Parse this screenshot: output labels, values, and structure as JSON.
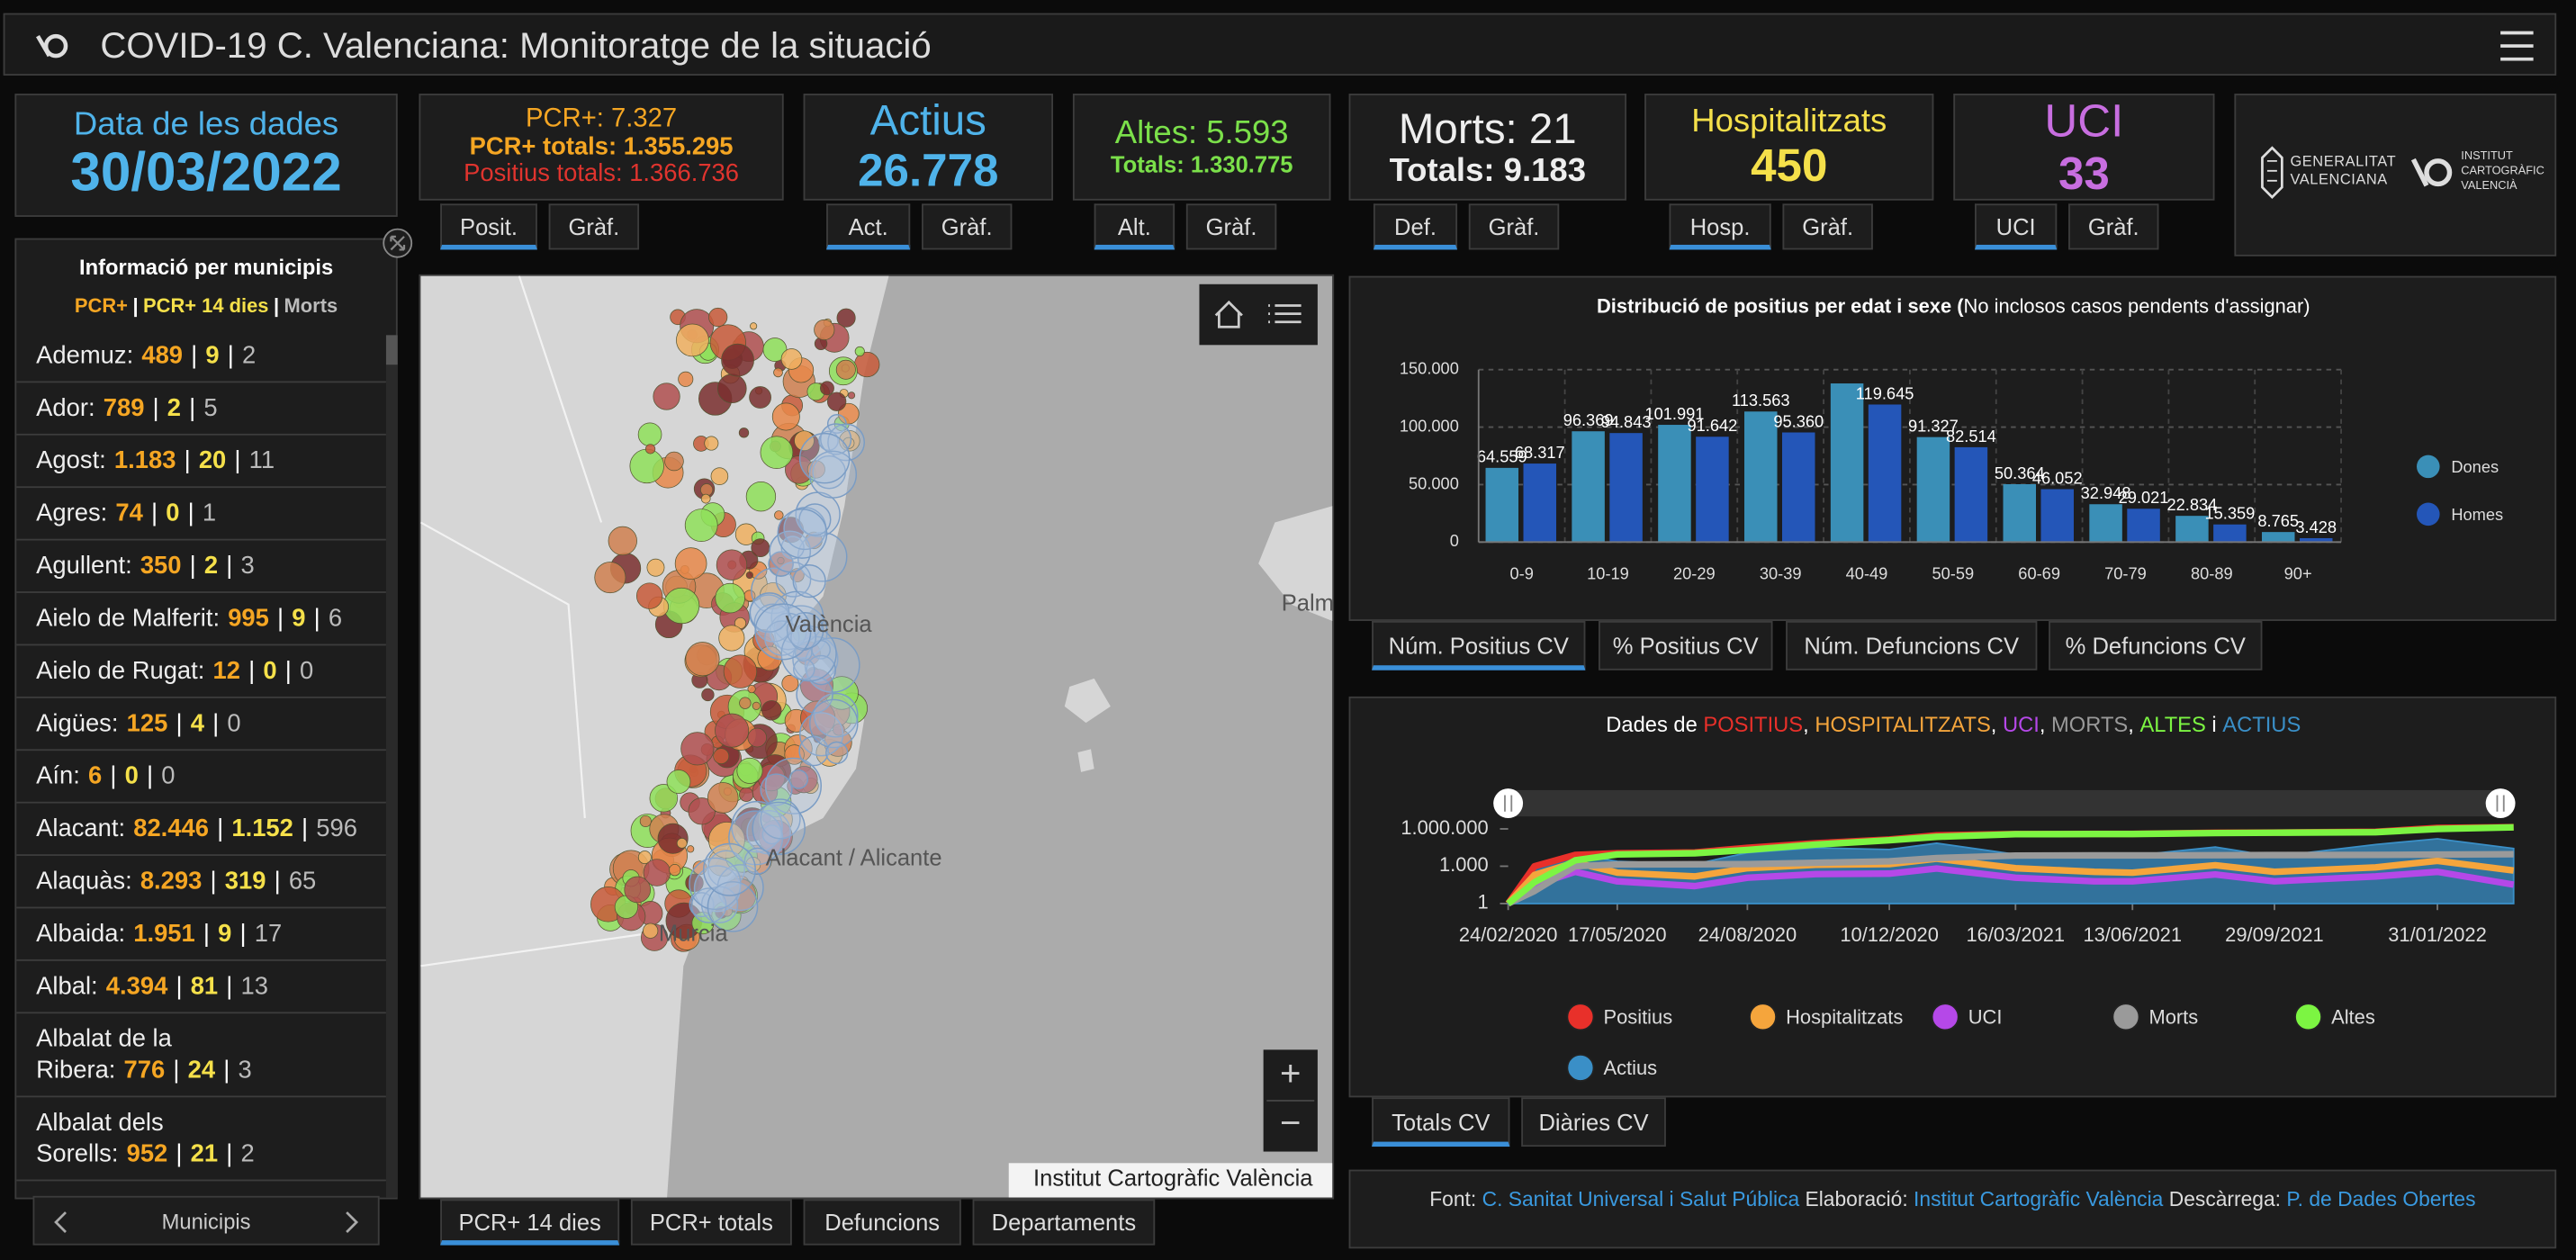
{
  "header": {
    "title": "COVID-19 C. Valenciana: Monitoratge de la situació"
  },
  "cards": [
    {
      "lines": [
        "Data de les dades",
        "30/03/2022"
      ]
    },
    {
      "lines": [
        "PCR+: 7.327",
        "PCR+ totals: 1.355.295",
        "Positius totals: 1.366.736"
      ],
      "tabs": [
        "Posit.",
        "Gràf."
      ]
    },
    {
      "lines": [
        "Actius",
        "26.778"
      ],
      "tabs": [
        "Act.",
        "Gràf."
      ]
    },
    {
      "lines": [
        "Altes: 5.593",
        "Totals: 1.330.775"
      ],
      "tabs": [
        "Alt.",
        "Gràf."
      ]
    },
    {
      "lines": [
        "Morts: 21",
        "Totals: 9.183"
      ],
      "tabs": [
        "Def.",
        "Gràf."
      ]
    },
    {
      "lines": [
        "Hospitalitzats",
        "450"
      ],
      "tabs": [
        "Hosp.",
        "Gràf."
      ]
    },
    {
      "lines": [
        "UCI",
        "33"
      ],
      "tabs": [
        "UCI",
        "Gràf."
      ]
    }
  ],
  "logos": {
    "generalitat": [
      "GENERALITAT",
      "VALENCIANA"
    ],
    "icv": [
      "INSTITUT",
      "CARTOGRÀFIC",
      "VALENCIÀ"
    ]
  },
  "municipalities": {
    "title": "Informació per municipis",
    "columns": [
      "PCR+",
      "PCR+ 14 dies",
      "Morts"
    ],
    "separator": "|",
    "footer": "Municipis",
    "rows": [
      [
        "Ademuz:",
        "489",
        "9",
        "2"
      ],
      [
        "Ador:",
        "789",
        "2",
        "5"
      ],
      [
        "Agost:",
        "1.183",
        "20",
        "11"
      ],
      [
        "Agres:",
        "74",
        "0",
        "1"
      ],
      [
        "Agullent:",
        "350",
        "2",
        "3"
      ],
      [
        "Aielo de Malferit:",
        "995",
        "9",
        "6"
      ],
      [
        "Aielo de Rugat:",
        "12",
        "0",
        "0"
      ],
      [
        "Aigües:",
        "125",
        "4",
        "0"
      ],
      [
        "Aín:",
        "6",
        "0",
        "0"
      ],
      [
        "Alacant:",
        "82.446",
        "1.152",
        "596"
      ],
      [
        "Alaquàs:",
        "8.293",
        "319",
        "65"
      ],
      [
        "Albaida:",
        "1.951",
        "9",
        "17"
      ],
      [
        "Albal:",
        "4.394",
        "81",
        "13"
      ],
      [
        "Albalat de la Ribera:",
        "776",
        "24",
        "3"
      ],
      [
        "Albalat dels Sorells:",
        "952",
        "21",
        "2"
      ]
    ]
  },
  "map": {
    "labels": [
      "València",
      "Alacant / Alicante",
      "Murcia",
      "Palma"
    ],
    "attribution": "Institut Cartogràfic València",
    "zoom": [
      "+",
      "−"
    ],
    "tabs": [
      "PCR+ 14 dies",
      "PCR+ totals",
      "Defuncions",
      "Departaments"
    ]
  },
  "chart_data": [
    {
      "type": "bar",
      "title": "Distribució de positius per edat i sexe (",
      "subtitle": "No inclosos casos pendents d'assignar)",
      "categories": [
        "0-9",
        "10-19",
        "20-29",
        "30-39",
        "40-49",
        "50-59",
        "60-69",
        "70-79",
        "80-89",
        "90+"
      ],
      "series": [
        {
          "name": "Dones",
          "color": "#3a8fb7",
          "values": [
            64559,
            96369,
            101991,
            113563,
            138000,
            91327,
            50364,
            32948,
            22834,
            8765
          ],
          "value_labels": [
            "64.559",
            "96.369",
            "101.991",
            "113.563",
            null,
            "91.327",
            "50.364",
            "32.948",
            "22.834",
            "8.765"
          ]
        },
        {
          "name": "Homes",
          "color": "#2456b8",
          "values": [
            68317,
            94843,
            91642,
            95360,
            119645,
            82514,
            46052,
            29021,
            15359,
            3428
          ],
          "value_labels": [
            "68.317",
            "94.843",
            "91.642",
            "95.360",
            "119.645",
            "82.514",
            "46.052",
            "29.021",
            "15.359",
            "3.428"
          ]
        }
      ],
      "ylim": [
        0,
        150000
      ],
      "yticks": [
        0,
        {
          "value": 50000,
          "label": "50.000"
        },
        {
          "value": 100000,
          "label": "100.000"
        },
        {
          "value": 150000,
          "label": "150.000"
        }
      ],
      "grid": true,
      "tabs": [
        "Núm. Positius CV",
        "% Positius CV",
        "Núm. Defuncions CV",
        "% Defuncions CV"
      ]
    },
    {
      "type": "line",
      "title": [
        "Dades de ",
        "POSITIUS",
        ", ",
        "HOSPITALITZATS",
        ", ",
        "UCI",
        ", ",
        "MORTS",
        ", ",
        "ALTES",
        " i ",
        "ACTIUS"
      ],
      "x": [
        "24/02/2020",
        "15/03/2020",
        "15/04/2020",
        "17/05/2020",
        "15/07/2020",
        "24/08/2020",
        "15/10/2020",
        "10/12/2020",
        "15/01/2021",
        "16/03/2021",
        "15/05/2021",
        "13/06/2021",
        "15/08/2021",
        "29/09/2021",
        "15/12/2021",
        "31/01/2022",
        "30/03/2022"
      ],
      "xlim": [
        "24/02/2020",
        "30/03/2022"
      ],
      "xticks": [
        "24/02/2020",
        "17/05/2020",
        "24/08/2020",
        "10/12/2020",
        "16/03/2021",
        "13/06/2021",
        "29/09/2021",
        "31/01/2022"
      ],
      "log_scale": true,
      "ylim": [
        1,
        10000000
      ],
      "yticks": [
        1,
        {
          "value": 1000,
          "label": "1.000"
        },
        {
          "value": 1000000,
          "label": "1.000.000"
        }
      ],
      "series": [
        {
          "name": "Positius",
          "color": "#e8302a",
          "values": [
            1,
            1000,
            8000,
            11000,
            13000,
            30000,
            70000,
            140000,
            300000,
            390000,
            395000,
            400000,
            500000,
            505000,
            600000,
            1200000,
            1366736
          ]
        },
        {
          "name": "Hospitalitzats",
          "color": "#f5a53c",
          "values": [
            1,
            200,
            2000,
            300,
            150,
            700,
            1300,
            1500,
            4000,
            700,
            350,
            300,
            1200,
            350,
            800,
            2700,
            450
          ]
        },
        {
          "name": "UCI",
          "color": "#b548e8",
          "values": [
            1,
            30,
            350,
            60,
            25,
            120,
            230,
            250,
            650,
            120,
            60,
            60,
            220,
            60,
            150,
            350,
            33
          ]
        },
        {
          "name": "Morts",
          "color": "#9a9a9a",
          "values": [
            1,
            10,
            1000,
            1400,
            1450,
            1500,
            1900,
            2500,
            4500,
            7200,
            7400,
            7450,
            7700,
            7900,
            8100,
            8700,
            9183
          ]
        },
        {
          "name": "Altes",
          "color": "#7cf542",
          "values": [
            1,
            50,
            3000,
            9000,
            11000,
            20000,
            55000,
            120000,
            230000,
            370000,
            385000,
            390000,
            460000,
            495000,
            540000,
            1000000,
            1330775
          ]
        },
        {
          "name": "Actius",
          "color": "#3a8fc7",
          "area": true,
          "values": [
            1,
            800,
            9000,
            2500,
            1500,
            12000,
            30000,
            22000,
            70000,
            9000,
            5000,
            7000,
            35000,
            6000,
            55000,
            160000,
            26778
          ]
        }
      ],
      "tabs": [
        "Totals CV",
        "Diàries CV"
      ]
    }
  ],
  "footer": {
    "source_label": "Font:",
    "source": "C. Sanitat Universal i Salut Pública",
    "made_label": "Elaboració:",
    "made": "Institut Cartogràfic València",
    "download_label": "Descàrrega:",
    "download": "P. de Dades Obertes"
  }
}
